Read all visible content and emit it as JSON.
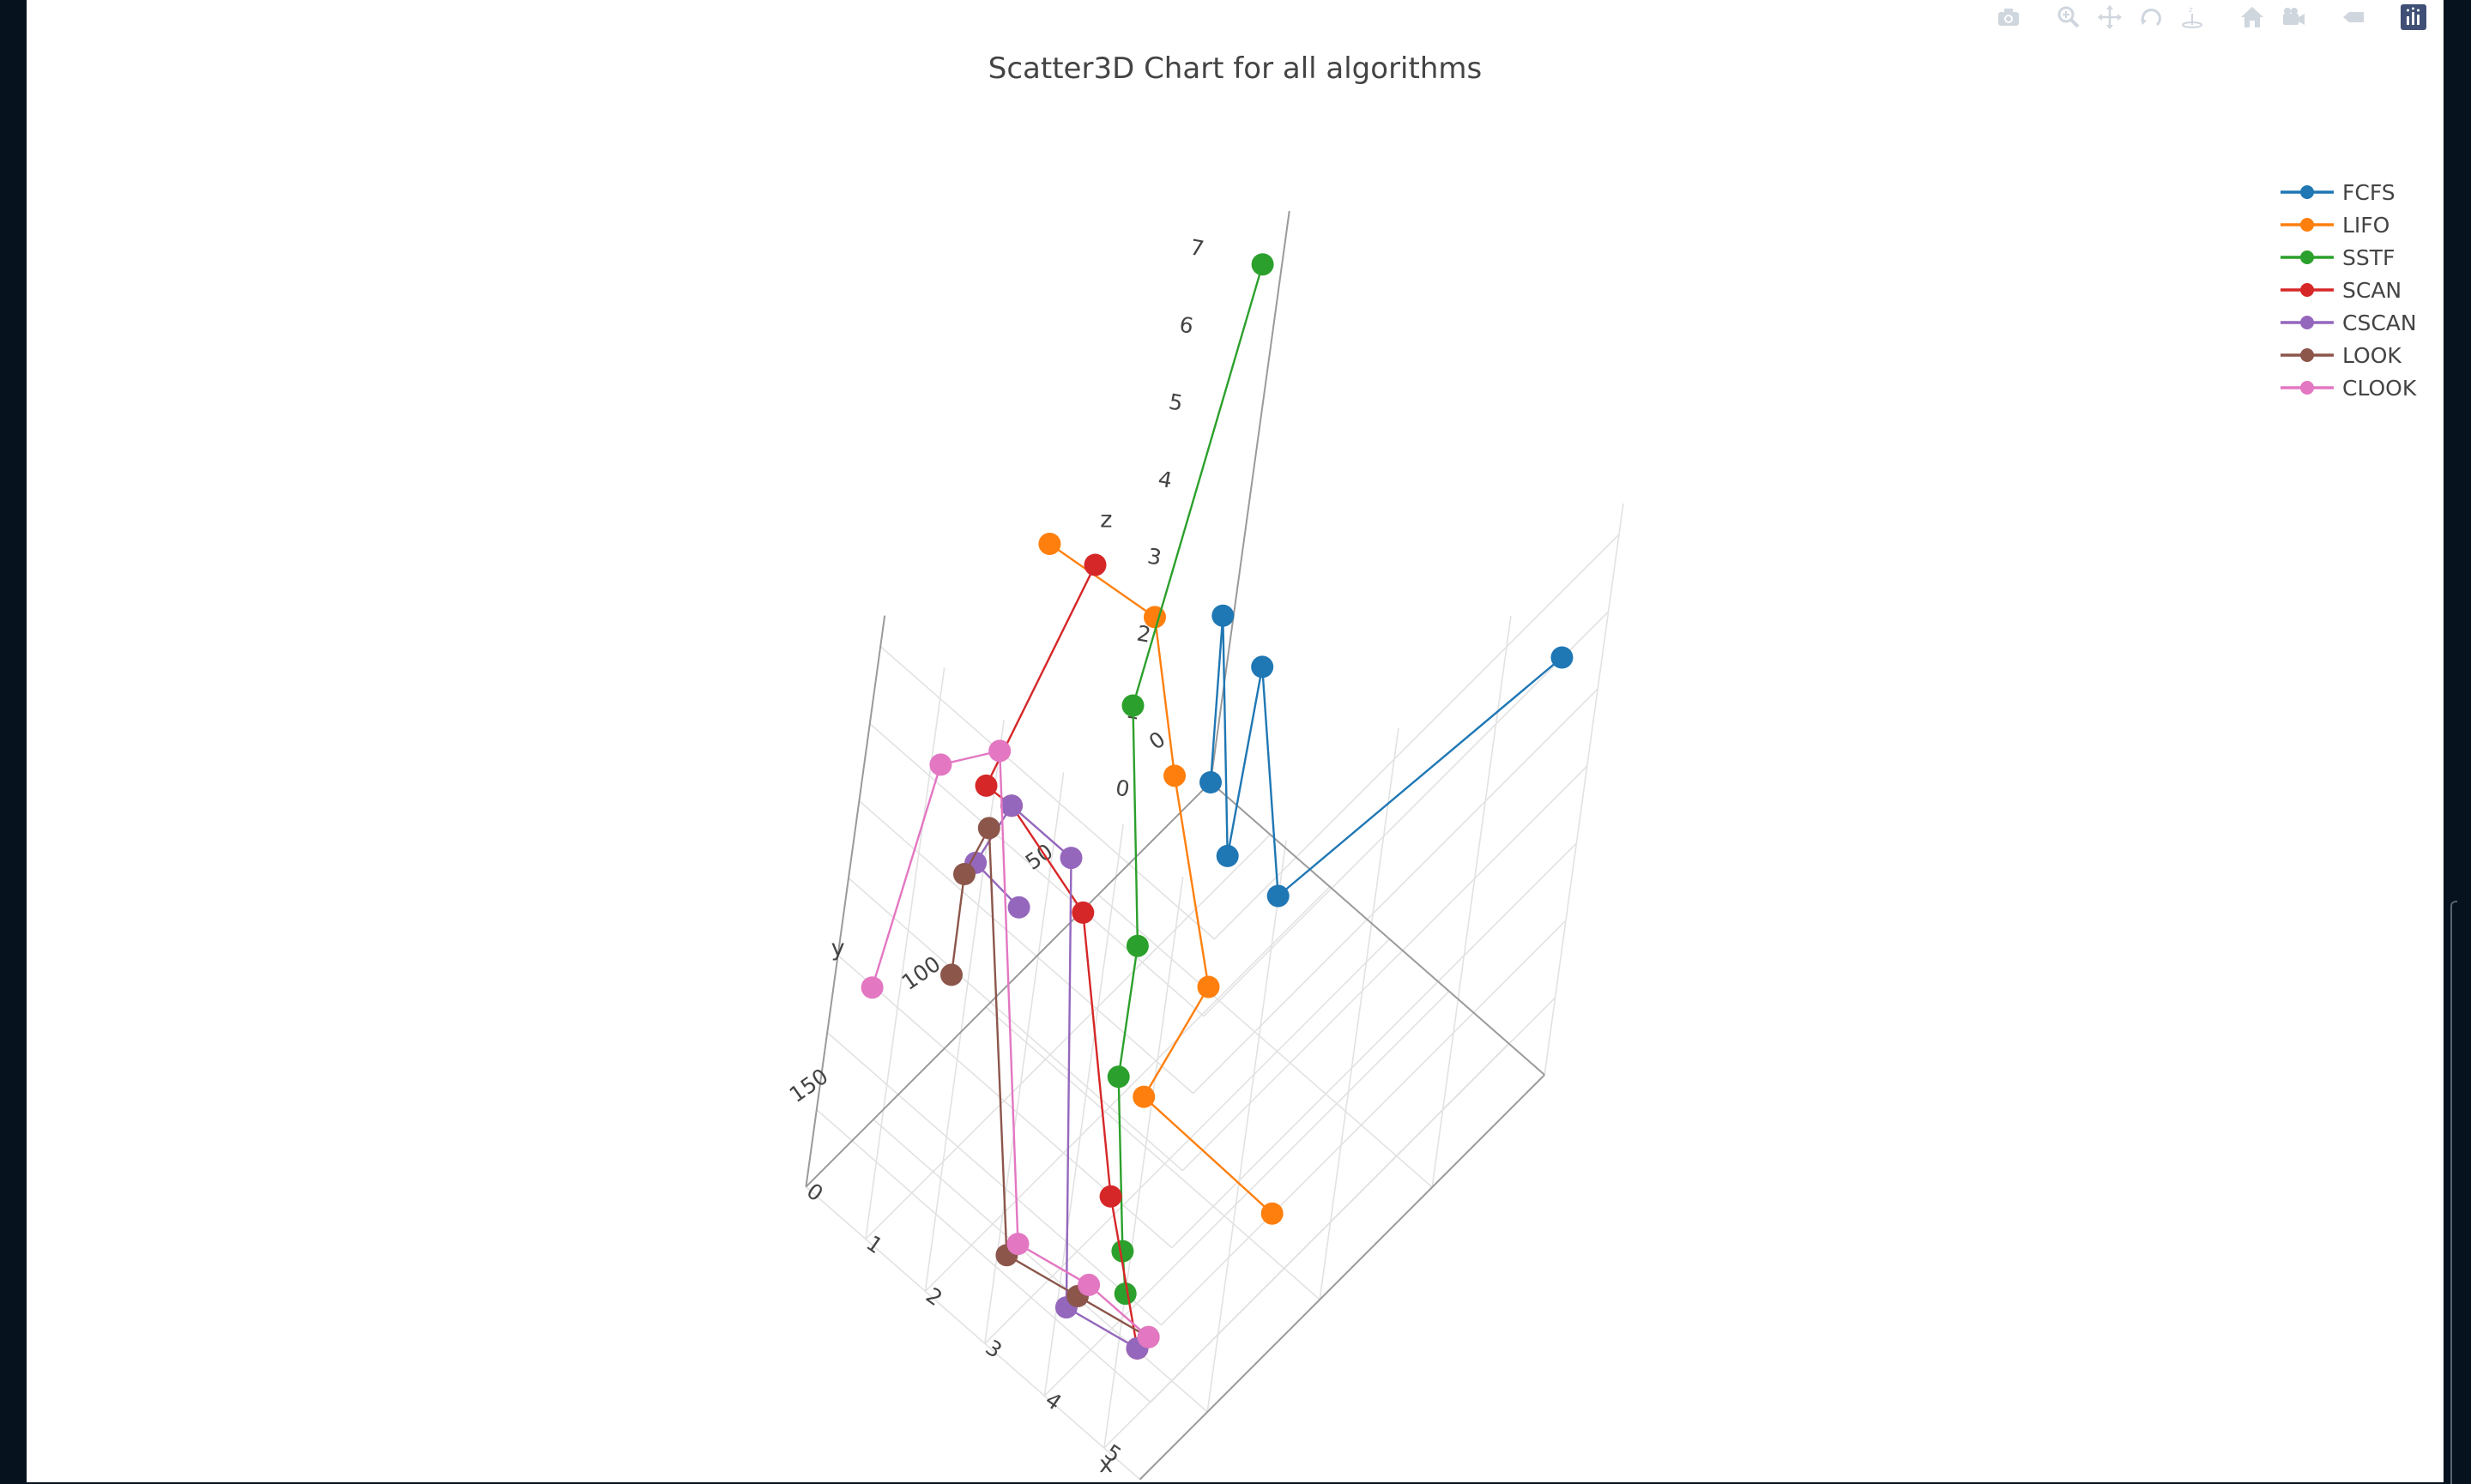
{
  "chart_data": {
    "type": "scatter3d",
    "title": "Scatter3D Chart for all algorithms",
    "xlabel": "x",
    "ylabel": "y",
    "zlabel": "z",
    "x_ticks": [
      "0",
      "1",
      "2",
      "3",
      "4",
      "5"
    ],
    "y_ticks": [
      "0",
      "50",
      "100",
      "150"
    ],
    "z_ticks": [
      "0",
      "1",
      "2",
      "3",
      "4",
      "5",
      "6",
      "7"
    ],
    "xlim": [
      0,
      5.6
    ],
    "ylim": [
      0,
      180
    ],
    "zlim": [
      0,
      7.4
    ],
    "legend_position": "top-right",
    "series": [
      {
        "name": "FCFS",
        "color": "#1f77b4",
        "points": [
          [
            0,
            0,
            0
          ],
          [
            1,
            40,
            4
          ],
          [
            2,
            55,
            2
          ],
          [
            3,
            85,
            6
          ],
          [
            4,
            95,
            4
          ],
          [
            5,
            0,
            5
          ]
        ]
      },
      {
        "name": "LIFO",
        "color": "#ff7f0e",
        "points": [
          [
            0,
            100,
            6
          ],
          [
            1,
            75,
            5
          ],
          [
            2,
            88,
            4
          ],
          [
            3,
            90,
            2
          ],
          [
            4,
            150,
            3
          ],
          [
            5,
            110,
            1
          ]
        ]
      },
      {
        "name": "SSTF",
        "color": "#2ca02c",
        "points": [
          [
            0,
            10,
            7
          ],
          [
            1,
            80,
            4
          ],
          [
            2,
            95,
            2
          ],
          [
            3,
            130,
            2
          ],
          [
            4,
            150,
            1
          ],
          [
            5,
            180,
            2
          ]
        ]
      },
      {
        "name": "SCAN",
        "color": "#d62728",
        "points": [
          [
            0,
            75,
            5
          ],
          [
            1,
            150,
            5
          ],
          [
            2,
            170,
            6
          ],
          [
            3,
            160,
            5
          ],
          [
            4,
            160,
            2
          ],
          [
            5,
            170,
            1
          ]
        ]
      },
      {
        "name": "CSCAN",
        "color": "#9467bd",
        "points": [
          [
            0,
            90,
            1
          ],
          [
            1,
            150,
            4
          ],
          [
            2,
            170,
            6
          ],
          [
            3,
            170,
            6
          ],
          [
            4,
            175,
            1
          ],
          [
            5,
            170,
            1
          ]
        ]
      },
      {
        "name": "LOOK",
        "color": "#8c564b",
        "points": [
          [
            0,
            120,
            1
          ],
          [
            1,
            155,
            4
          ],
          [
            2,
            180,
            6
          ],
          [
            3,
            175,
            1
          ],
          [
            4,
            170,
            1
          ],
          [
            5,
            165,
            1
          ]
        ]
      },
      {
        "name": "CLOOK",
        "color": "#e377c2",
        "points": [
          [
            0,
            160,
            2
          ],
          [
            1,
            175,
            6
          ],
          [
            2,
            180,
            7
          ],
          [
            3,
            170,
            1
          ],
          [
            4,
            165,
            1
          ],
          [
            5,
            165,
            1
          ]
        ]
      }
    ]
  },
  "modebar": {
    "icons": [
      "camera-icon",
      "zoom-icon",
      "pan-icon",
      "orbit-rotation-icon",
      "turntable-rotation-icon",
      "reset-camera-icon",
      "save-camera-icon",
      "hover-closest-icon",
      "plotly-logo"
    ]
  }
}
